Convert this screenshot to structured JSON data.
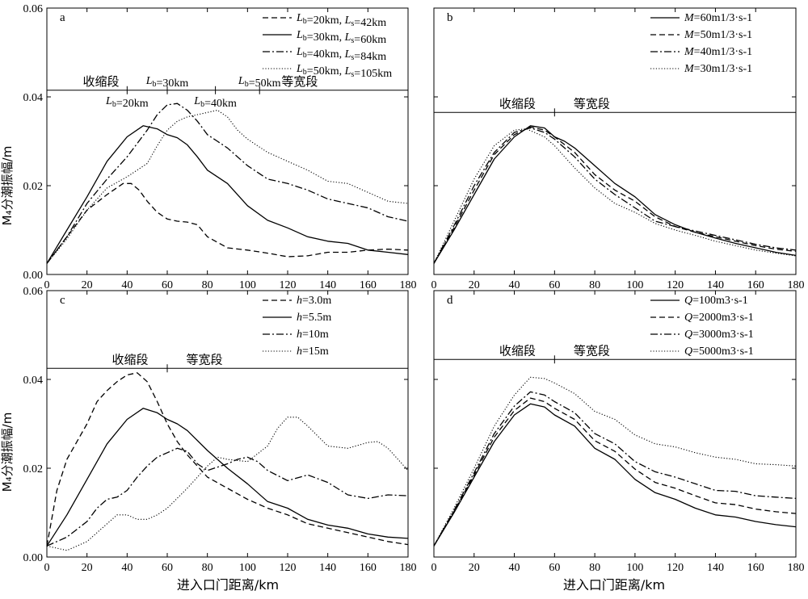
{
  "figure": {
    "ylabel": "M₄分潮振幅/m",
    "xlabel": "进入口门距离/km"
  },
  "chart_data": [
    {
      "panel": "a",
      "type": "line",
      "xlim": [
        0,
        180
      ],
      "ylim": [
        0,
        0.06
      ],
      "xticks": [
        0,
        20,
        40,
        60,
        80,
        100,
        120,
        140,
        160,
        180
      ],
      "yticks": [
        0.0,
        0.02,
        0.04,
        0.06
      ],
      "ytick_labels": [
        "0.00",
        "0.02",
        "0.04",
        "0.06"
      ],
      "show_ytick_labels": true,
      "grid": false,
      "legend_position": "top-right",
      "series": [
        {
          "name": "Lb=20km, Ls=42km",
          "style": "dashed",
          "x": [
            0,
            10,
            20,
            30,
            38,
            42,
            46,
            50,
            55,
            60,
            65,
            70,
            75,
            80,
            90,
            100,
            110,
            120,
            130,
            140,
            150,
            160,
            170,
            180
          ],
          "y": [
            0.0025,
            0.0085,
            0.0145,
            0.018,
            0.0205,
            0.0205,
            0.019,
            0.0165,
            0.014,
            0.0125,
            0.012,
            0.0118,
            0.0112,
            0.0085,
            0.006,
            0.0055,
            0.0048,
            0.004,
            0.0042,
            0.005,
            0.005,
            0.0055,
            0.0057,
            0.0055
          ]
        },
        {
          "name": "Lb=30km, Ls=60km",
          "style": "solid",
          "x": [
            0,
            10,
            20,
            30,
            40,
            48,
            55,
            60,
            65,
            70,
            75,
            80,
            90,
            100,
            110,
            120,
            130,
            140,
            150,
            160,
            170,
            180
          ],
          "y": [
            0.0025,
            0.01,
            0.0175,
            0.0255,
            0.031,
            0.0335,
            0.0328,
            0.0315,
            0.0308,
            0.0292,
            0.0265,
            0.0235,
            0.0205,
            0.0155,
            0.0122,
            0.0105,
            0.0085,
            0.0075,
            0.007,
            0.0055,
            0.005,
            0.0045
          ]
        },
        {
          "name": "Lb=40km, Ls=84km",
          "style": "dashdot",
          "x": [
            0,
            10,
            20,
            30,
            40,
            50,
            55,
            60,
            65,
            70,
            75,
            80,
            85,
            90,
            100,
            110,
            120,
            130,
            140,
            150,
            160,
            170,
            180
          ],
          "y": [
            0.0025,
            0.0085,
            0.016,
            0.0215,
            0.0265,
            0.0325,
            0.036,
            0.0382,
            0.0385,
            0.037,
            0.0345,
            0.0315,
            0.03,
            0.0285,
            0.0245,
            0.0215,
            0.0205,
            0.019,
            0.017,
            0.016,
            0.015,
            0.013,
            0.012
          ]
        },
        {
          "name": "Lb=50km, Ls=105km",
          "style": "dotted",
          "x": [
            0,
            10,
            20,
            30,
            40,
            50,
            55,
            60,
            65,
            70,
            80,
            85,
            90,
            95,
            100,
            110,
            120,
            130,
            140,
            150,
            160,
            170,
            180
          ],
          "y": [
            0.0025,
            0.008,
            0.0145,
            0.0195,
            0.022,
            0.025,
            0.029,
            0.0325,
            0.0345,
            0.0355,
            0.0365,
            0.037,
            0.0355,
            0.0325,
            0.0305,
            0.0275,
            0.0255,
            0.0235,
            0.021,
            0.0205,
            0.0185,
            0.0165,
            0.016
          ]
        }
      ],
      "annotation_line": {
        "y": 0.0415,
        "x_start": 0,
        "x_end": 180,
        "label_left": "收缩段",
        "label_right": "等宽段"
      },
      "tick_marks": [
        40,
        60,
        84,
        106
      ],
      "lb_labels": [
        {
          "text": "Lb=20km",
          "pos": "below",
          "x": 40
        },
        {
          "text": "Lb=30km",
          "pos": "above",
          "x": 60
        },
        {
          "text": "Lb=40km",
          "pos": "below",
          "x": 84
        },
        {
          "text": "Lb=50km",
          "pos": "above",
          "x": 106
        }
      ]
    },
    {
      "panel": "b",
      "type": "line",
      "xlim": [
        0,
        180
      ],
      "ylim": [
        0,
        0.06
      ],
      "xticks": [
        0,
        20,
        40,
        60,
        80,
        100,
        120,
        140,
        160,
        180
      ],
      "yticks": [
        0.0,
        0.02,
        0.04,
        0.06
      ],
      "show_ytick_labels": false,
      "grid": false,
      "legend_position": "top-right",
      "series": [
        {
          "name": "M=60m1/3·s-1",
          "style": "solid",
          "x": [
            0,
            10,
            20,
            30,
            40,
            48,
            55,
            60,
            65,
            70,
            80,
            90,
            100,
            110,
            120,
            130,
            140,
            150,
            160,
            170,
            180
          ],
          "y": [
            0.0025,
            0.01,
            0.018,
            0.026,
            0.031,
            0.0335,
            0.033,
            0.031,
            0.03,
            0.0285,
            0.0245,
            0.0205,
            0.0175,
            0.0135,
            0.0112,
            0.0095,
            0.0082,
            0.007,
            0.006,
            0.005,
            0.0043
          ]
        },
        {
          "name": "M=50m1/3·s-1",
          "style": "dashed",
          "x": [
            0,
            10,
            20,
            30,
            40,
            48,
            55,
            60,
            70,
            80,
            90,
            100,
            110,
            120,
            130,
            140,
            150,
            160,
            170,
            180
          ],
          "y": [
            0.0025,
            0.0105,
            0.019,
            0.027,
            0.0315,
            0.0332,
            0.0325,
            0.031,
            0.0275,
            0.0225,
            0.019,
            0.0165,
            0.013,
            0.0108,
            0.0095,
            0.0085,
            0.0075,
            0.0065,
            0.0057,
            0.0052
          ]
        },
        {
          "name": "M=40m1/3·s-1",
          "style": "dashdot",
          "x": [
            0,
            10,
            20,
            30,
            40,
            48,
            55,
            60,
            70,
            80,
            90,
            100,
            110,
            120,
            130,
            140,
            150,
            160,
            170,
            180
          ],
          "y": [
            0.0025,
            0.011,
            0.02,
            0.0275,
            0.032,
            0.033,
            0.032,
            0.0305,
            0.0265,
            0.0215,
            0.018,
            0.015,
            0.012,
            0.0108,
            0.0098,
            0.0088,
            0.0078,
            0.0068,
            0.006,
            0.0055
          ]
        },
        {
          "name": "M=30m1/3·s-1",
          "style": "dotted",
          "x": [
            0,
            10,
            20,
            30,
            40,
            46,
            55,
            60,
            70,
            80,
            90,
            100,
            110,
            120,
            130,
            140,
            150,
            160,
            170,
            180
          ],
          "y": [
            0.0025,
            0.012,
            0.0215,
            0.029,
            0.0325,
            0.0328,
            0.031,
            0.029,
            0.024,
            0.0195,
            0.016,
            0.014,
            0.0115,
            0.01,
            0.0088,
            0.0075,
            0.0065,
            0.0055,
            0.0048,
            0.0042
          ]
        }
      ],
      "annotation_line": {
        "y": 0.0365,
        "x_start": 0,
        "x_end": 180,
        "label_left": "收缩段",
        "label_right": "等宽段"
      },
      "tick_marks": [
        60
      ]
    },
    {
      "panel": "c",
      "type": "line",
      "xlim": [
        0,
        180
      ],
      "ylim": [
        0,
        0.06
      ],
      "xticks": [
        0,
        20,
        40,
        60,
        80,
        100,
        120,
        140,
        160,
        180
      ],
      "yticks": [
        0.0,
        0.02,
        0.04,
        0.06
      ],
      "ytick_labels": [
        "0.00",
        "0.02",
        "0.04",
        "0.06"
      ],
      "show_ytick_labels": true,
      "grid": false,
      "legend_position": "top-right",
      "series": [
        {
          "name": "h=3.0m",
          "style": "dashed",
          "x": [
            0,
            5,
            10,
            20,
            25,
            30,
            35,
            40,
            45,
            50,
            55,
            60,
            65,
            70,
            80,
            90,
            100,
            110,
            120,
            130,
            140,
            150,
            160,
            170,
            180
          ],
          "y": [
            0.0025,
            0.015,
            0.022,
            0.03,
            0.035,
            0.0375,
            0.0395,
            0.041,
            0.0415,
            0.0395,
            0.035,
            0.03,
            0.026,
            0.023,
            0.018,
            0.0155,
            0.013,
            0.011,
            0.0095,
            0.0075,
            0.0065,
            0.0055,
            0.0045,
            0.0035,
            0.0028
          ]
        },
        {
          "name": "h=5.5m",
          "style": "solid",
          "x": [
            0,
            10,
            20,
            30,
            40,
            48,
            55,
            60,
            65,
            70,
            80,
            90,
            100,
            110,
            120,
            130,
            140,
            150,
            160,
            170,
            180
          ],
          "y": [
            0.0025,
            0.0095,
            0.0175,
            0.0255,
            0.031,
            0.0335,
            0.0325,
            0.031,
            0.03,
            0.0285,
            0.024,
            0.02,
            0.0165,
            0.0125,
            0.011,
            0.0085,
            0.0072,
            0.0065,
            0.0052,
            0.0045,
            0.0042
          ]
        },
        {
          "name": "h=10m",
          "style": "dashdot",
          "x": [
            0,
            10,
            20,
            25,
            30,
            35,
            40,
            45,
            50,
            55,
            60,
            65,
            70,
            75,
            80,
            90,
            95,
            100,
            105,
            110,
            120,
            130,
            140,
            150,
            160,
            170,
            180
          ],
          "y": [
            0.0025,
            0.0045,
            0.008,
            0.011,
            0.013,
            0.0135,
            0.015,
            0.018,
            0.0205,
            0.0225,
            0.0235,
            0.0245,
            0.0238,
            0.021,
            0.0195,
            0.021,
            0.022,
            0.0225,
            0.0215,
            0.0195,
            0.0172,
            0.0185,
            0.0168,
            0.014,
            0.0132,
            0.014,
            0.0138
          ]
        },
        {
          "name": "h=15m",
          "style": "dotted",
          "x": [
            0,
            10,
            20,
            30,
            35,
            40,
            45,
            50,
            55,
            60,
            70,
            80,
            85,
            90,
            100,
            110,
            115,
            120,
            125,
            130,
            140,
            150,
            160,
            165,
            170,
            180
          ],
          "y": [
            0.0025,
            0.0015,
            0.0035,
            0.0075,
            0.0095,
            0.0095,
            0.0085,
            0.0085,
            0.0095,
            0.011,
            0.0155,
            0.0205,
            0.0225,
            0.022,
            0.0215,
            0.025,
            0.029,
            0.0315,
            0.0315,
            0.0295,
            0.025,
            0.0245,
            0.0258,
            0.026,
            0.0245,
            0.0195
          ]
        }
      ],
      "annotation_line": {
        "y": 0.0425,
        "x_start": 0,
        "x_end": 180,
        "label_left": "收缩段",
        "label_right": "等宽段"
      },
      "tick_marks": [
        60
      ]
    },
    {
      "panel": "d",
      "type": "line",
      "xlim": [
        0,
        180
      ],
      "ylim": [
        0,
        0.06
      ],
      "xticks": [
        0,
        20,
        40,
        60,
        80,
        100,
        120,
        140,
        160,
        180
      ],
      "yticks": [
        0.0,
        0.02,
        0.04,
        0.06
      ],
      "show_ytick_labels": false,
      "grid": false,
      "legend_position": "top-right",
      "series": [
        {
          "name": "Q=100m3·s-1",
          "style": "solid",
          "x": [
            0,
            10,
            20,
            30,
            40,
            48,
            55,
            60,
            70,
            80,
            90,
            100,
            110,
            120,
            130,
            140,
            150,
            160,
            170,
            180
          ],
          "y": [
            0.0025,
            0.01,
            0.018,
            0.026,
            0.032,
            0.0345,
            0.0338,
            0.032,
            0.0295,
            0.0245,
            0.022,
            0.0175,
            0.0145,
            0.013,
            0.011,
            0.0095,
            0.009,
            0.008,
            0.0073,
            0.0068
          ]
        },
        {
          "name": "Q=2000m3·s-1",
          "style": "dashed",
          "x": [
            0,
            10,
            20,
            30,
            40,
            48,
            55,
            60,
            70,
            80,
            90,
            100,
            110,
            120,
            130,
            140,
            150,
            160,
            170,
            180
          ],
          "y": [
            0.0025,
            0.0103,
            0.0185,
            0.027,
            0.033,
            0.0358,
            0.035,
            0.0335,
            0.031,
            0.0262,
            0.0238,
            0.0198,
            0.0168,
            0.0155,
            0.0138,
            0.0122,
            0.0118,
            0.0108,
            0.0102,
            0.0098
          ]
        },
        {
          "name": "Q=3000m3·s-1",
          "style": "dashdot",
          "x": [
            0,
            10,
            20,
            30,
            40,
            48,
            55,
            60,
            70,
            80,
            90,
            100,
            110,
            120,
            130,
            140,
            150,
            160,
            170,
            180
          ],
          "y": [
            0.0025,
            0.0105,
            0.019,
            0.0278,
            0.034,
            0.0372,
            0.0365,
            0.035,
            0.0325,
            0.0278,
            0.0255,
            0.0215,
            0.0192,
            0.018,
            0.0165,
            0.015,
            0.0148,
            0.0138,
            0.0135,
            0.0132
          ]
        },
        {
          "name": "Q=5000m3·s-1",
          "style": "dotted",
          "x": [
            0,
            10,
            20,
            30,
            40,
            48,
            55,
            60,
            70,
            80,
            90,
            100,
            110,
            120,
            130,
            140,
            150,
            160,
            170,
            180
          ],
          "y": [
            0.0025,
            0.011,
            0.02,
            0.0295,
            0.0365,
            0.0405,
            0.0402,
            0.0392,
            0.0368,
            0.0328,
            0.031,
            0.0275,
            0.0255,
            0.0248,
            0.0235,
            0.0225,
            0.022,
            0.021,
            0.0208,
            0.0205
          ]
        }
      ],
      "annotation_line": {
        "y": 0.0445,
        "x_start": 0,
        "x_end": 180,
        "label_left": "收缩段",
        "label_right": "等宽段"
      },
      "tick_marks": [
        60
      ]
    }
  ]
}
